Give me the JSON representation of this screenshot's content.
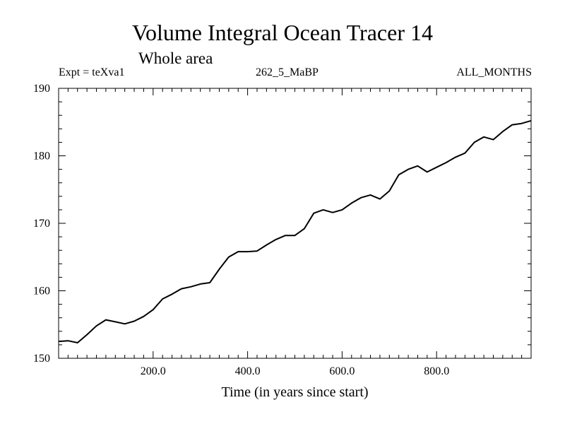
{
  "chart_data": {
    "type": "line",
    "title": "Volume Integral Ocean Tracer 14",
    "subtitle": "Whole area",
    "header_left": "Expt = teXva1",
    "header_center": "262_5_MaBP",
    "header_right": "ALL_MONTHS",
    "xlabel": "Time (in years since start)",
    "ylabel": "",
    "xlim": [
      0,
      1000
    ],
    "ylim": [
      150,
      190
    ],
    "x_ticks": [
      200,
      400,
      600,
      800
    ],
    "x_tick_labels": [
      "200.0",
      "400.0",
      "600.0",
      "800.0"
    ],
    "y_ticks": [
      150,
      160,
      170,
      180,
      190
    ],
    "y_tick_labels": [
      "150",
      "160",
      "170",
      "180",
      "190"
    ],
    "grid": false,
    "series": [
      {
        "name": "Ocean Tracer 14",
        "x": [
          0,
          20,
          40,
          60,
          80,
          100,
          120,
          140,
          160,
          180,
          200,
          220,
          240,
          260,
          280,
          300,
          320,
          340,
          360,
          380,
          400,
          420,
          440,
          460,
          480,
          500,
          520,
          540,
          560,
          580,
          600,
          620,
          640,
          660,
          680,
          700,
          720,
          740,
          760,
          780,
          800,
          820,
          840,
          860,
          880,
          900,
          920,
          940,
          960,
          980,
          1000
        ],
        "y": [
          152.5,
          152.6,
          152.3,
          153.5,
          154.8,
          155.7,
          155.4,
          155.1,
          155.5,
          156.2,
          157.2,
          158.8,
          159.5,
          160.3,
          160.6,
          161.0,
          161.2,
          163.2,
          165.0,
          165.8,
          165.8,
          165.9,
          166.8,
          167.6,
          168.2,
          168.2,
          169.2,
          171.5,
          172.0,
          171.6,
          172.0,
          173.0,
          173.8,
          174.2,
          173.6,
          174.8,
          177.2,
          178.0,
          178.5,
          177.6,
          178.3,
          179.0,
          179.8,
          180.4,
          182.0,
          182.8,
          182.4,
          183.6,
          184.6,
          184.8,
          185.2
        ]
      }
    ]
  }
}
